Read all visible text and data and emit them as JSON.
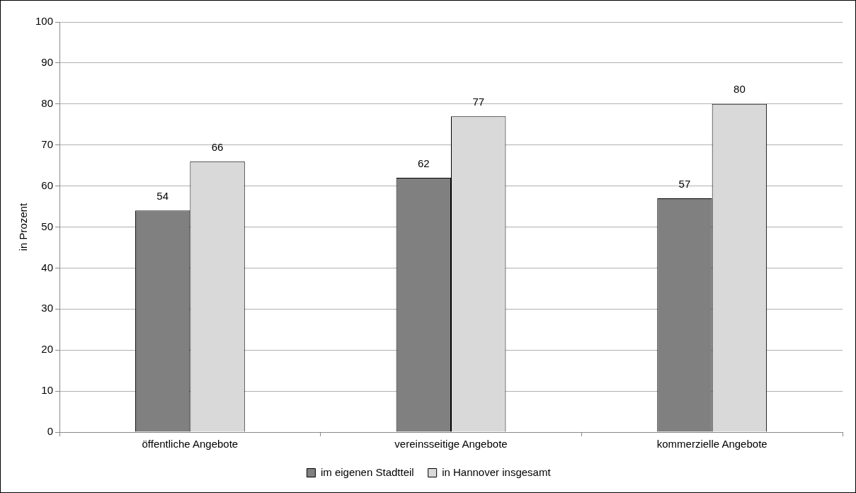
{
  "chart_data": {
    "type": "bar",
    "ylabel": "in Prozent",
    "categories": [
      "öffentliche Angebote",
      "vereinsseitige Angebote",
      "kommerzielle Angebote"
    ],
    "series": [
      {
        "name": "im eigenen Stadtteil",
        "color": "#808080",
        "values": [
          54,
          62,
          57
        ]
      },
      {
        "name": "in Hannover insgesamt",
        "color": "#d9d9d9",
        "values": [
          66,
          77,
          80
        ]
      }
    ],
    "ylim": [
      0,
      100
    ],
    "yticks": [
      0,
      10,
      20,
      30,
      40,
      50,
      60,
      70,
      80,
      90,
      100
    ],
    "grid": "y",
    "legend": "bottom",
    "data_labels": true
  }
}
